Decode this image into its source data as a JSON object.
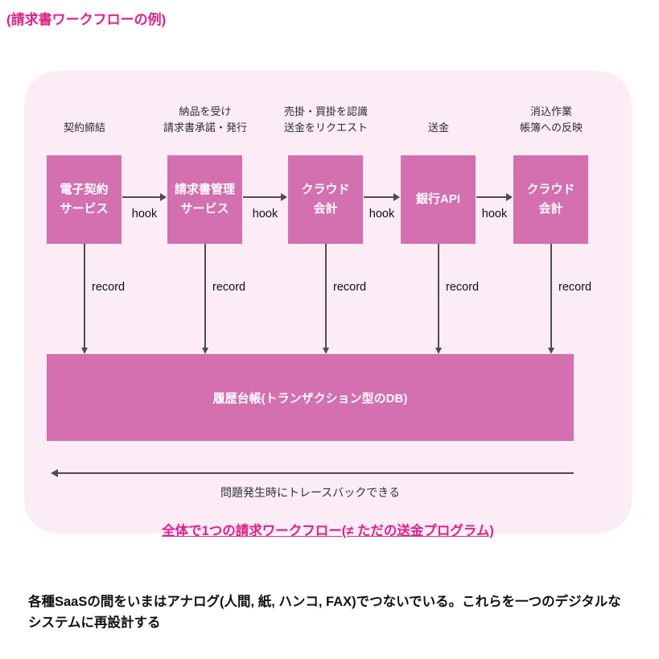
{
  "title": "(請求書ワークフローの例)",
  "colors": {
    "accent": "#e0218a",
    "panel_bg": "#fbecf6",
    "box": "#d46fb0",
    "arrow": "#4d4d4d"
  },
  "nodes": [
    {
      "caption": [
        "契約締結"
      ],
      "label": [
        "電子契約",
        "サービス"
      ]
    },
    {
      "caption": [
        "納品を受け",
        "請求書承諾・発行"
      ],
      "label": [
        "請求書管理",
        "サービス"
      ]
    },
    {
      "caption": [
        "売掛・買掛を認識",
        "送金をリクエスト"
      ],
      "label": [
        "クラウド",
        "会計"
      ]
    },
    {
      "caption": [
        "送金"
      ],
      "label": [
        "銀行API"
      ]
    },
    {
      "caption": [
        "消込作業",
        "帳簿への反映"
      ],
      "label": [
        "クラウド",
        "会計"
      ]
    }
  ],
  "hook_label": "hook",
  "record_label": "record",
  "ledger": {
    "label": "履歴台帳(トランザクション型のDB)"
  },
  "traceback": {
    "label": "問題発生時にトレースバックできる"
  },
  "summary_link": "全体で1つの請求ワークフロー(≠ ただの送金プログラム)",
  "footer_note": "各種SaaSの間をいまはアナログ(人間, 紙, ハンコ, FAX)でつないでいる。これらを一つのデジタルなシステムに再設計する"
}
